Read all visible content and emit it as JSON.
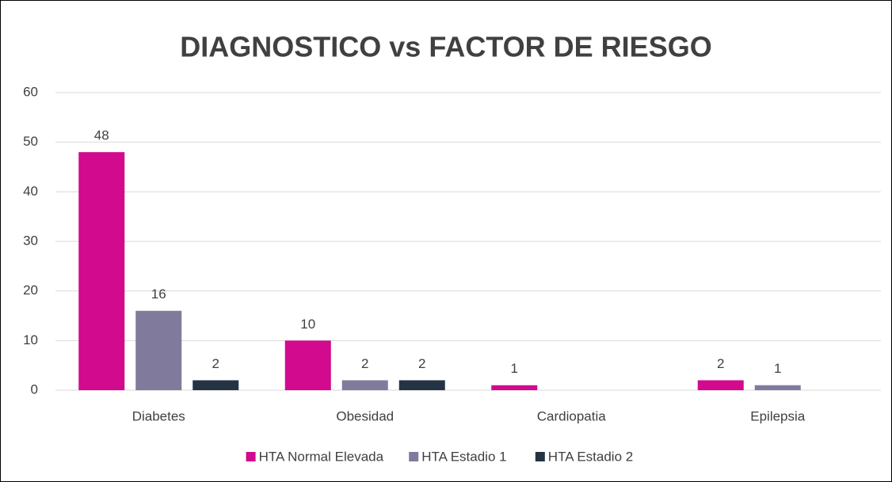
{
  "chart_data": {
    "type": "bar",
    "title": "DIAGNOSTICO vs FACTOR DE RIESGO",
    "categories": [
      "Diabetes",
      "Obesidad",
      "Cardiopatia",
      "Epilepsia"
    ],
    "series": [
      {
        "name": "HTA Normal Elevada",
        "color": "#d10a8e",
        "values": [
          48,
          10,
          1,
          2
        ]
      },
      {
        "name": "HTA Estadio 1",
        "color": "#807b9d",
        "values": [
          16,
          2,
          null,
          1
        ]
      },
      {
        "name": "HTA Estadio 2",
        "color": "#243444",
        "values": [
          2,
          2,
          null,
          null
        ]
      }
    ],
    "ylim": [
      0,
      60
    ],
    "yticks": [
      0,
      10,
      20,
      30,
      40,
      50,
      60
    ],
    "grid": true,
    "legend": "bottom"
  }
}
